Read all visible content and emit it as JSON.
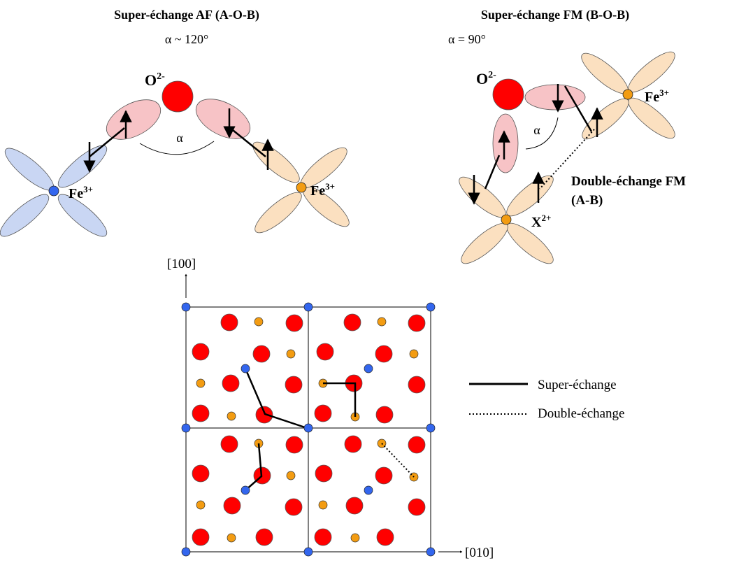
{
  "panel_af": {
    "title": "Super-échange AF (A-O-B)",
    "angle": "α ~ 120°",
    "angle_symbol": "α",
    "oxygen_label": "O",
    "oxygen_charge": "2-",
    "left_ion_label": "Fe",
    "left_ion_charge": "3+",
    "right_ion_label": "Fe",
    "right_ion_charge": "3+"
  },
  "panel_fm": {
    "title": "Super-échange FM (B-O-B)",
    "angle": "α = 90°",
    "angle_symbol": "α",
    "oxygen_label": "O",
    "oxygen_charge": "2-",
    "fe_label": "Fe",
    "fe_charge": "3+",
    "x_label": "X",
    "x_charge": "2+",
    "double_exchange_title": "Double-échange FM",
    "double_exchange_sites": "(A-B)"
  },
  "lattice": {
    "axis_vertical": "[100]",
    "axis_horizontal": "[010]"
  },
  "legend": {
    "super_exchange": "Super-échange",
    "double_exchange": "Double-échange"
  },
  "colors": {
    "oxygen": "#ff0000",
    "a_site": "#3366ee",
    "b_site": "#f39c12",
    "blue_orbital": "#c9d6f3",
    "pink_orbital": "#f7c3c6",
    "peach_orbital": "#fbe0c0"
  }
}
